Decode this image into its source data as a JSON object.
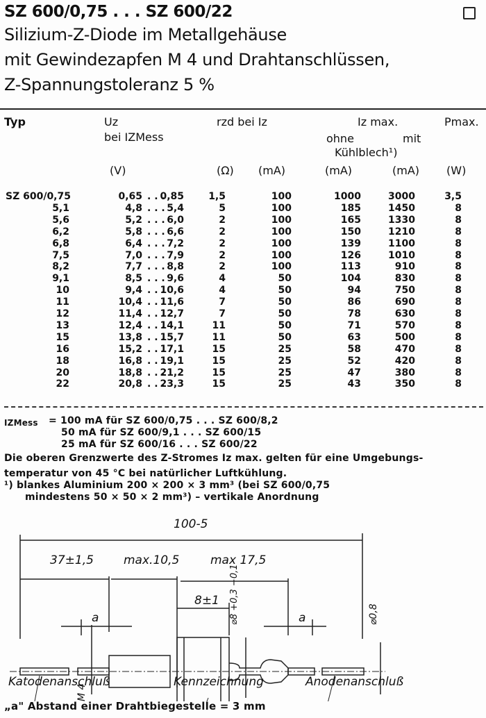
{
  "header": {
    "title": "SZ 600/0,75 . . . SZ 600/22",
    "subtitle_lines": [
      "Silizium-Z-Diode im Metallgehäuse",
      "mit Gewindezapfen M 4 und Drahtanschlüssen,",
      "Z-Spannungstoleranz 5 %"
    ]
  },
  "table": {
    "headers": {
      "typ": "Typ",
      "uz": "Uz",
      "uz_sub": "bei IZMess",
      "rzd": "rzd bei Iz",
      "iz_max": "Iz max.",
      "ohne": "ohne",
      "mit": "mit",
      "kuehlblech": "Kühlblech¹)",
      "pmax": "Pmax."
    },
    "units": [
      "(V)",
      "(Ω)",
      "(mA)",
      "(mA)",
      "(mA)",
      "(W)"
    ],
    "rows": [
      [
        "SZ 600/0,75",
        "0,65",
        "0,85",
        "1,5",
        "100",
        "1000",
        "3000",
        "3,5"
      ],
      [
        "5,1",
        "4,8",
        "5,4",
        "5",
        "100",
        "185",
        "1450",
        "8"
      ],
      [
        "5,6",
        "5,2",
        "6,0",
        "2",
        "100",
        "165",
        "1330",
        "8"
      ],
      [
        "6,2",
        "5,8",
        "6,6",
        "2",
        "100",
        "150",
        "1210",
        "8"
      ],
      [
        "6,8",
        "6,4",
        "7,2",
        "2",
        "100",
        "139",
        "1100",
        "8"
      ],
      [
        "7,5",
        "7,0",
        "7,9",
        "2",
        "100",
        "126",
        "1010",
        "8"
      ],
      [
        "8,2",
        "7,7",
        "8,8",
        "2",
        "100",
        "113",
        "910",
        "8"
      ],
      [
        "9,1",
        "8,5",
        "9,6",
        "4",
        "50",
        "104",
        "830",
        "8"
      ],
      [
        "10",
        "9,4",
        "10,6",
        "4",
        "50",
        "94",
        "750",
        "8"
      ],
      [
        "11",
        "10,4",
        "11,6",
        "7",
        "50",
        "86",
        "690",
        "8"
      ],
      [
        "12",
        "11,4",
        "12,7",
        "7",
        "50",
        "78",
        "630",
        "8"
      ],
      [
        "13",
        "12,4",
        "14,1",
        "11",
        "50",
        "71",
        "570",
        "8"
      ],
      [
        "15",
        "13,8",
        "15,7",
        "11",
        "50",
        "63",
        "500",
        "8"
      ],
      [
        "16",
        "15,2",
        "17,1",
        "15",
        "25",
        "58",
        "470",
        "8"
      ],
      [
        "18",
        "16,8",
        "19,1",
        "15",
        "25",
        "52",
        "420",
        "8"
      ],
      [
        "20",
        "18,8",
        "21,2",
        "15",
        "25",
        "47",
        "380",
        "8"
      ],
      [
        "22",
        "20,8",
        "23,3",
        "15",
        "25",
        "43",
        "350",
        "8"
      ]
    ]
  },
  "notes": {
    "izmess_label": "IZMess",
    "izmess_lines": [
      "= 100 mA für SZ 600/0,75 . . . SZ 600/8,2",
      "50 mA für SZ 600/9,1 . . . SZ 600/15",
      "25 mA für SZ 600/16 . . . SZ 600/22"
    ],
    "text_lines": [
      "Die oberen Grenzwerte des Z-Stromes Iz max. gelten für eine Umgebungs-",
      "temperatur von 45 °C bei natürlicher Luftkühlung.",
      "¹)  blankes Aluminium 200 × 200 × 3 mm³ (bei SZ 600/0,75",
      "mindestens 50 × 50 × 2 mm³) – vertikale Anordnung"
    ]
  },
  "drawing": {
    "dim_total": "100-5",
    "dim_lead": "37±1,5",
    "dim_thread": "max.10,5",
    "dim_body": "max 17,5",
    "dim_hex": "8±1",
    "dim_a1": "a",
    "dim_a2": "a",
    "dim_dia": "⌀8 +0,3 −0,1",
    "dim_wire": "⌀0,8",
    "dim_thread_size": "M 4",
    "label_cathode": "Katodenanschluß",
    "label_marking": "Kennzeichnung",
    "label_anode": "Anodenanschluß"
  },
  "footer": "„a\" Abstand einer Drahtbiegestelle = 3 mm"
}
